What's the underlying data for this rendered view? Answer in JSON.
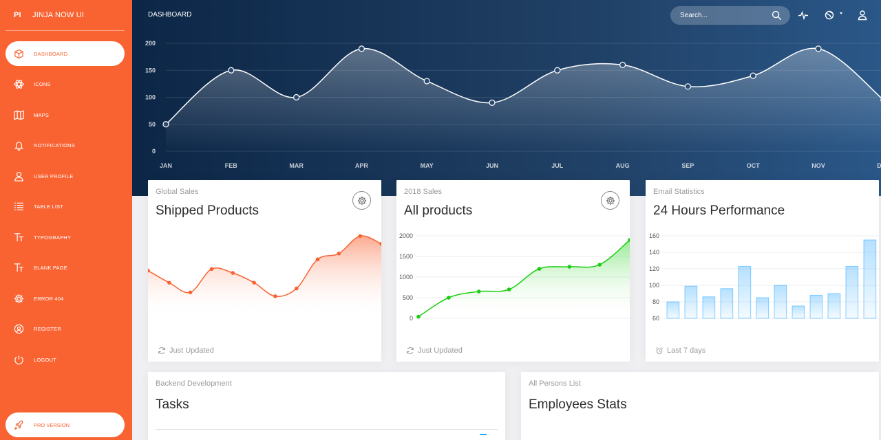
{
  "sidebar": {
    "brand_mini": "PI",
    "brand_name": "JINJA NOW UI",
    "items": [
      {
        "label": "DASHBOARD",
        "icon": "cube-icon"
      },
      {
        "label": "ICONS",
        "icon": "atom-icon"
      },
      {
        "label": "MAPS",
        "icon": "map-icon"
      },
      {
        "label": "NOTIFICATIONS",
        "icon": "bell-icon"
      },
      {
        "label": "USER PROFILE",
        "icon": "user-icon"
      },
      {
        "label": "TABLE LIST",
        "icon": "list-icon"
      },
      {
        "label": "TYPOGRAPHY",
        "icon": "text-icon"
      },
      {
        "label": "BLANK PAGE",
        "icon": "text-icon"
      },
      {
        "label": "ERROR 404",
        "icon": "gear-icon"
      },
      {
        "label": "REGISTER",
        "icon": "badge-icon"
      },
      {
        "label": "LOGOUT",
        "icon": "power-icon"
      }
    ],
    "pro_label": "PRO VERSION"
  },
  "navbar": {
    "title": "DASHBOARD",
    "search_placeholder": "Search..."
  },
  "colors": {
    "accent": "#f96332",
    "header_dark": "#0c2646",
    "green": "#18ce0f",
    "blue_bar": "#2ca8ff"
  },
  "chart_data": [
    {
      "type": "area",
      "x": [
        "JAN",
        "FEB",
        "MAR",
        "APR",
        "MAY",
        "JUN",
        "JUL",
        "AUG",
        "SEP",
        "OCT",
        "NOV",
        "DEC"
      ],
      "values": [
        50,
        150,
        100,
        190,
        130,
        90,
        150,
        160,
        120,
        140,
        190,
        95
      ],
      "ylim": [
        0,
        200
      ],
      "yticks": [
        0,
        50,
        100,
        150,
        200
      ],
      "grid": true
    },
    {
      "type": "area",
      "title": "Shipped Products",
      "category": "Global Sales",
      "values": [
        542,
        480,
        430,
        550,
        530,
        480,
        410,
        450,
        600,
        630,
        720,
        680
      ],
      "footer": "Just Updated"
    },
    {
      "type": "area",
      "title": "All products",
      "category": "2018 Sales",
      "values": [
        40,
        500,
        650,
        700,
        1200,
        1250,
        1300,
        1900
      ],
      "ylim": [
        0,
        2000
      ],
      "yticks": [
        0,
        500,
        1000,
        1500,
        2000
      ],
      "footer": "Just Updated"
    },
    {
      "type": "bar",
      "title": "24 Hours Performance",
      "category": "Email Statistics",
      "values": [
        80,
        99,
        86,
        96,
        123,
        85,
        100,
        75,
        88,
        90,
        123,
        155
      ],
      "ylim": [
        60,
        160
      ],
      "yticks": [
        60,
        80,
        100,
        120,
        140,
        160
      ],
      "footer": "Last 7 days"
    }
  ],
  "cards": {
    "tasks": {
      "category": "Backend Development",
      "title": "Tasks"
    },
    "employees": {
      "category": "All Persons List",
      "title": "Employees Stats"
    }
  }
}
